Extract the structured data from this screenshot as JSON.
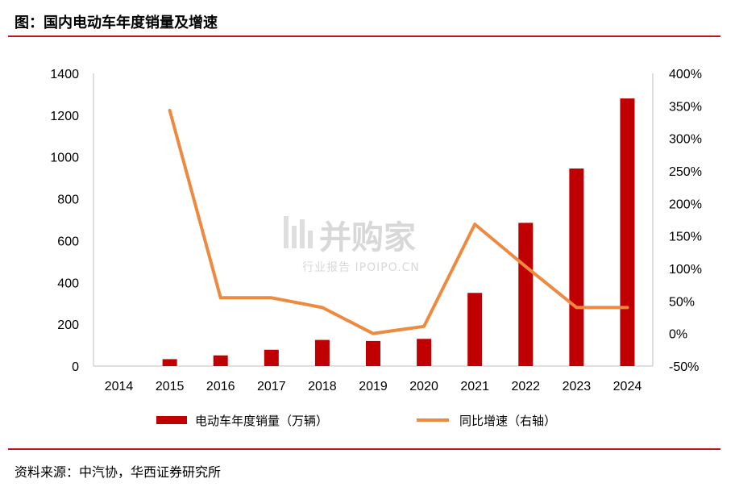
{
  "header": {
    "title": "图：国内电动车年度销量及增速"
  },
  "footer": {
    "source": "资料来源：中汽协，华西证券研究所"
  },
  "watermark": {
    "main": "并购家",
    "sub": "行业报告 IPOIPO.CN"
  },
  "colors": {
    "bar": "#c00000",
    "line": "#ed8a3f",
    "rule": "#c0161c"
  },
  "chart_data": {
    "type": "bar",
    "categories": [
      "2014",
      "2015",
      "2016",
      "2017",
      "2018",
      "2019",
      "2020",
      "2021",
      "2022",
      "2023",
      "2024"
    ],
    "series": [
      {
        "name": "电动车年度销量（万辆）",
        "type": "bar",
        "axis": "left",
        "values": [
          null,
          33,
          51,
          78,
          125,
          120,
          130,
          350,
          685,
          945,
          1280
        ]
      },
      {
        "name": "同比增速（右轴）",
        "type": "line",
        "axis": "right",
        "values": [
          null,
          343,
          55,
          55,
          40,
          0,
          11,
          168,
          103,
          40,
          40
        ]
      }
    ],
    "ylim": [
      0,
      1400
    ],
    "y2lim": [
      -50,
      400
    ],
    "yticks": [
      "0",
      "200",
      "400",
      "600",
      "800",
      "1000",
      "1200",
      "1400"
    ],
    "y2ticks": [
      "-50%",
      "0%",
      "50%",
      "100%",
      "150%",
      "200%",
      "250%",
      "300%",
      "350%",
      "400%"
    ],
    "legend": "bottom",
    "grid": false
  }
}
